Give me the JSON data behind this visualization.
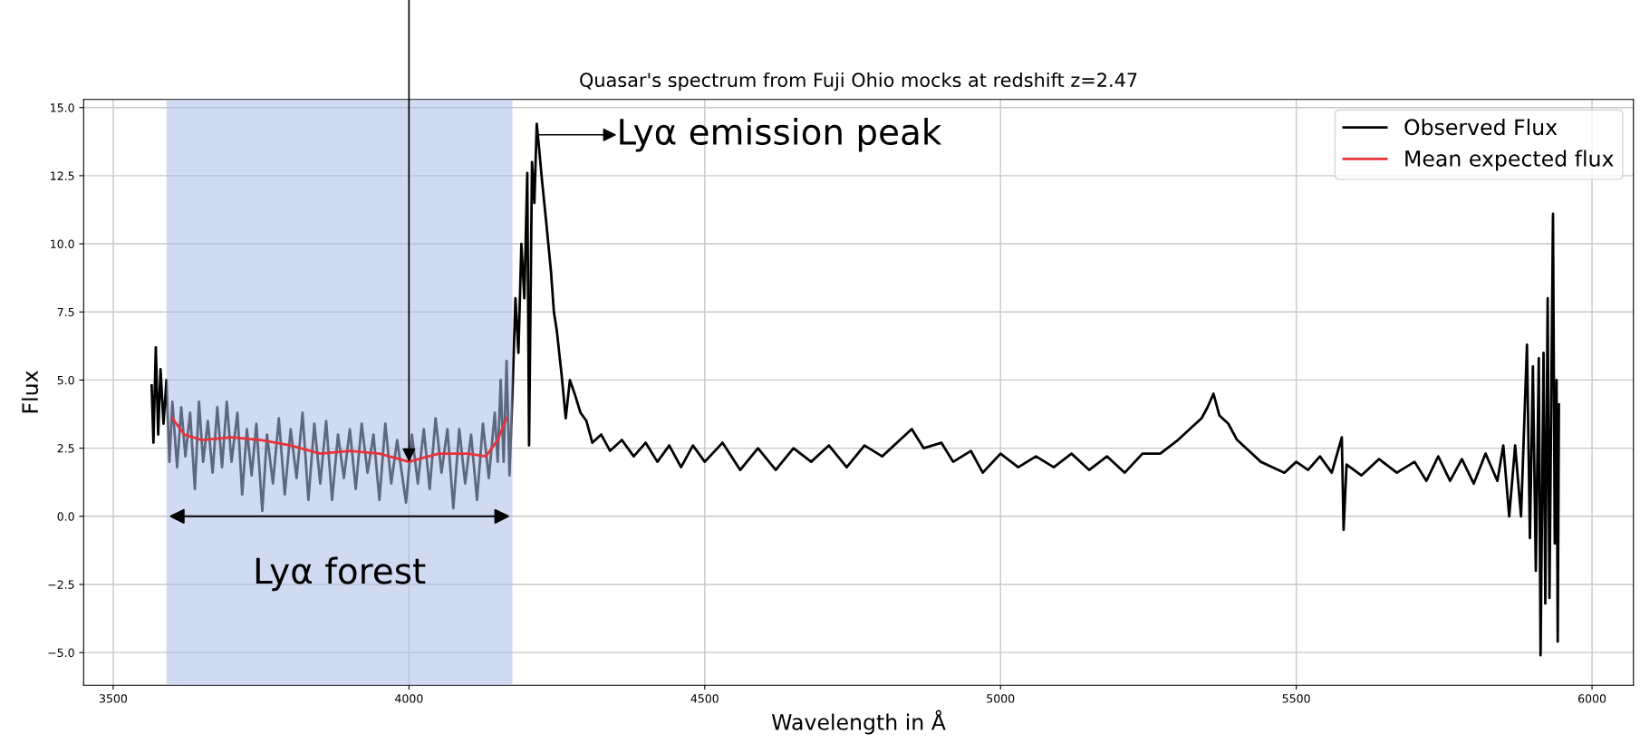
{
  "chart_data": {
    "type": "line",
    "title": "Quasar's spectrum from Fuji Ohio mocks at redshift z=2.47",
    "xlabel": "Wavelength in Å",
    "ylabel": "Flux",
    "xlim": [
      3450,
      6070
    ],
    "xticks": [
      3500,
      4000,
      4500,
      5000,
      5500,
      6000
    ],
    "ylim": [
      -6.2,
      15.3
    ],
    "yticks": [
      {
        "value": -5,
        "label": "−5.0"
      },
      {
        "value": -2.5,
        "label": "−2.5"
      },
      {
        "value": 0,
        "label": "0.0"
      },
      {
        "value": 2.5,
        "label": "2.5"
      },
      {
        "value": 5,
        "label": "5.0"
      },
      {
        "value": 7.5,
        "label": "7.5"
      },
      {
        "value": 10,
        "label": "10.0"
      },
      {
        "value": 12.5,
        "label": "12.5"
      },
      {
        "value": 15,
        "label": "15.0"
      }
    ],
    "grid": true,
    "legend": "top right",
    "series": [
      {
        "name": "Observed Flux",
        "color": "#000000",
        "x": [
          3565,
          3568,
          3572,
          3576,
          3580,
          3585,
          3590,
          3595,
          3600,
          3608,
          3615,
          3622,
          3630,
          3638,
          3645,
          3652,
          3660,
          3668,
          3676,
          3684,
          3692,
          3700,
          3710,
          3718,
          3726,
          3734,
          3742,
          3752,
          3760,
          3770,
          3780,
          3790,
          3800,
          3810,
          3820,
          3830,
          3840,
          3850,
          3860,
          3870,
          3880,
          3890,
          3900,
          3910,
          3920,
          3930,
          3940,
          3950,
          3960,
          3970,
          3980,
          3995,
          4005,
          4015,
          4025,
          4035,
          4045,
          4055,
          4065,
          4075,
          4085,
          4095,
          4105,
          4115,
          4125,
          4135,
          4145,
          4150,
          4155,
          4160,
          4165,
          4170,
          4175,
          4180,
          4185,
          4190,
          4195,
          4200,
          4203,
          4208,
          4212,
          4216,
          4220,
          4225,
          4232,
          4240,
          4245,
          4250,
          4258,
          4265,
          4272,
          4280,
          4290,
          4300,
          4310,
          4325,
          4340,
          4360,
          4380,
          4400,
          4420,
          4440,
          4460,
          4480,
          4500,
          4530,
          4560,
          4590,
          4620,
          4650,
          4680,
          4710,
          4740,
          4770,
          4800,
          4830,
          4850,
          4870,
          4900,
          4920,
          4950,
          4970,
          5000,
          5030,
          5060,
          5090,
          5120,
          5150,
          5180,
          5210,
          5240,
          5270,
          5300,
          5320,
          5340,
          5350,
          5360,
          5370,
          5385,
          5400,
          5420,
          5440,
          5460,
          5480,
          5500,
          5520,
          5540,
          5560,
          5577,
          5580,
          5585,
          5610,
          5640,
          5670,
          5700,
          5720,
          5740,
          5760,
          5780,
          5800,
          5820,
          5840,
          5850,
          5860,
          5870,
          5880,
          5890,
          5895,
          5900,
          5905,
          5910,
          5913,
          5918,
          5921,
          5925,
          5928,
          5934,
          5937,
          5940,
          5942,
          5944
        ],
        "values": [
          4.8,
          2.7,
          6.2,
          3.0,
          5.4,
          3.4,
          5.0,
          2.0,
          4.2,
          1.8,
          4.0,
          2.2,
          3.8,
          1.0,
          4.2,
          2.0,
          3.5,
          1.6,
          4.0,
          1.8,
          4.2,
          2.0,
          3.8,
          0.8,
          3.2,
          1.5,
          3.4,
          0.2,
          3.0,
          1.2,
          3.6,
          0.8,
          3.2,
          1.4,
          3.8,
          0.6,
          3.4,
          1.2,
          3.5,
          0.6,
          3.0,
          1.4,
          3.2,
          1.0,
          3.4,
          1.6,
          3.0,
          0.6,
          3.4,
          1.2,
          2.8,
          0.5,
          3.0,
          1.2,
          3.2,
          1.0,
          3.6,
          1.6,
          3.2,
          0.3,
          3.2,
          1.2,
          3.0,
          0.6,
          3.4,
          1.4,
          3.8,
          2.0,
          5.0,
          2.0,
          5.7,
          1.5,
          4.6,
          8.0,
          6.0,
          10.0,
          8.0,
          12.6,
          2.6,
          13.0,
          11.5,
          14.4,
          13.5,
          12.3,
          10.8,
          9.0,
          7.5,
          6.8,
          5.2,
          3.6,
          5.0,
          4.5,
          3.8,
          3.5,
          2.7,
          3.0,
          2.4,
          2.8,
          2.2,
          2.7,
          2.0,
          2.6,
          1.8,
          2.6,
          2.0,
          2.7,
          1.7,
          2.5,
          1.7,
          2.5,
          2.0,
          2.6,
          1.8,
          2.6,
          2.2,
          2.8,
          3.2,
          2.5,
          2.7,
          2.0,
          2.4,
          1.6,
          2.3,
          1.8,
          2.2,
          1.8,
          2.3,
          1.7,
          2.2,
          1.6,
          2.3,
          2.3,
          2.8,
          3.2,
          3.6,
          4.0,
          4.5,
          3.7,
          3.4,
          2.8,
          2.4,
          2.0,
          1.8,
          1.6,
          2.0,
          1.7,
          2.2,
          1.6,
          2.9,
          -0.5,
          1.9,
          1.5,
          2.1,
          1.6,
          2.0,
          1.3,
          2.2,
          1.3,
          2.1,
          1.2,
          2.3,
          1.3,
          2.6,
          0.0,
          2.6,
          0.0,
          6.3,
          -0.8,
          5.5,
          -2.0,
          5.8,
          -5.1,
          6.0,
          -3.2,
          8.0,
          -3.0,
          11.1,
          -1.0,
          5.0,
          -4.6,
          4.1
        ]
      },
      {
        "name": "Mean expected flux",
        "color": "#e8323c",
        "x": [
          3600,
          3620,
          3650,
          3700,
          3750,
          3800,
          3850,
          3900,
          3950,
          4000,
          4050,
          4100,
          4130,
          4150,
          4165
        ],
        "values": [
          3.6,
          3.0,
          2.8,
          2.9,
          2.8,
          2.6,
          2.3,
          2.4,
          2.3,
          2.0,
          2.3,
          2.3,
          2.2,
          2.8,
          3.6
        ]
      }
    ],
    "bands": [
      {
        "axis": "x",
        "from": 3590,
        "to": 4175,
        "label": "Lyα forest",
        "color": "#aabde6"
      }
    ],
    "annotations": [
      {
        "text": "Lyα emission peak",
        "x": 4220,
        "y": 14
      }
    ]
  }
}
